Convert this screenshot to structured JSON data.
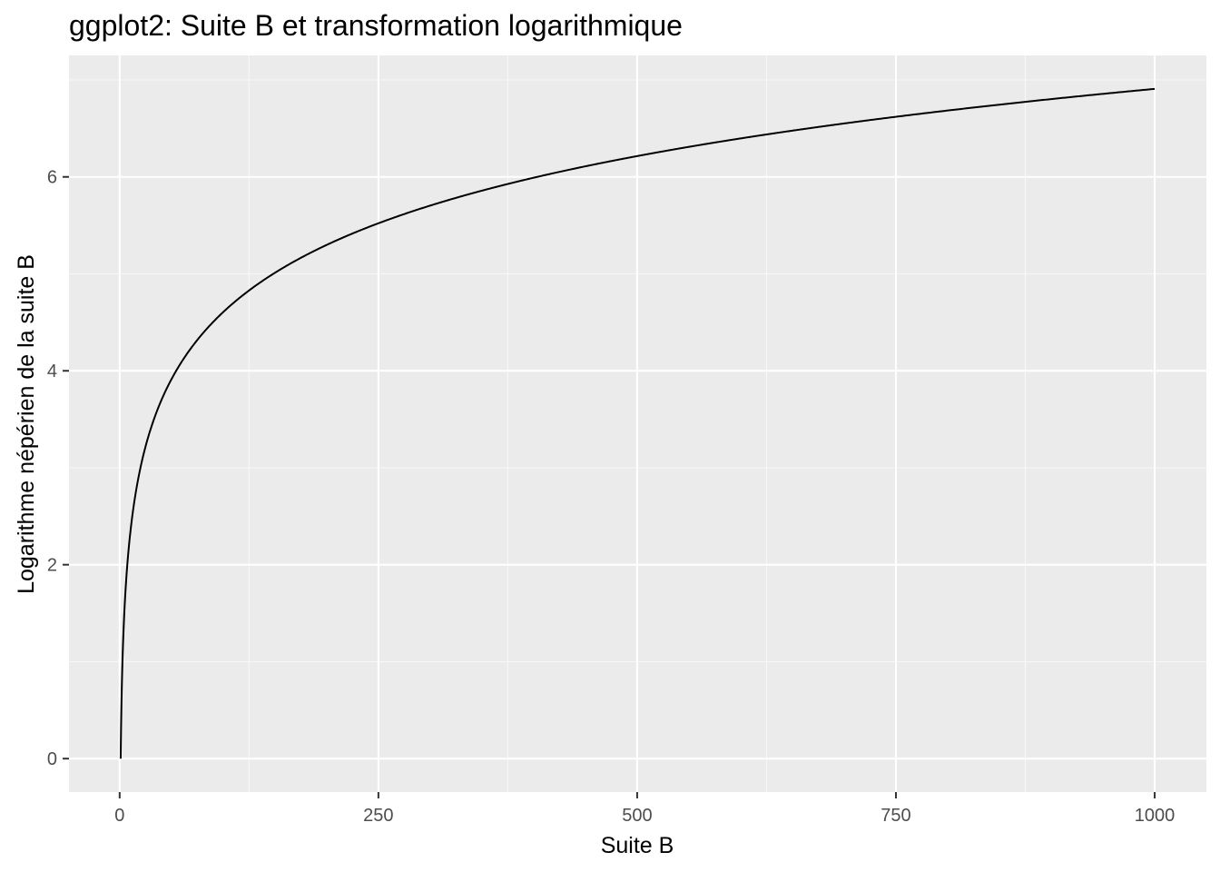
{
  "chart_data": {
    "type": "line",
    "title": "ggplot2: Suite B et transformation logarithmique",
    "xlabel": "Suite B",
    "ylabel": "Logarithme népérien de la suite B",
    "function": "y = ln(x)",
    "x_range": [
      1,
      1000
    ],
    "xlim": [
      -48.95,
      1049.95
    ],
    "ylim": [
      -0.345,
      7.253
    ],
    "x_ticks": [
      0,
      250,
      500,
      750,
      1000
    ],
    "x_tick_labels": [
      "0",
      "250",
      "500",
      "750",
      "1000"
    ],
    "y_ticks": [
      0,
      2,
      4,
      6
    ],
    "y_tick_labels": [
      "0",
      "2",
      "4",
      "6"
    ],
    "grid": true,
    "legend": "none",
    "colors": {
      "panel_background": "#ebebeb",
      "grid_major": "#ffffff",
      "grid_minor": "#f7f7f7",
      "line": "#000000",
      "tick_label": "#4d4d4d"
    }
  }
}
